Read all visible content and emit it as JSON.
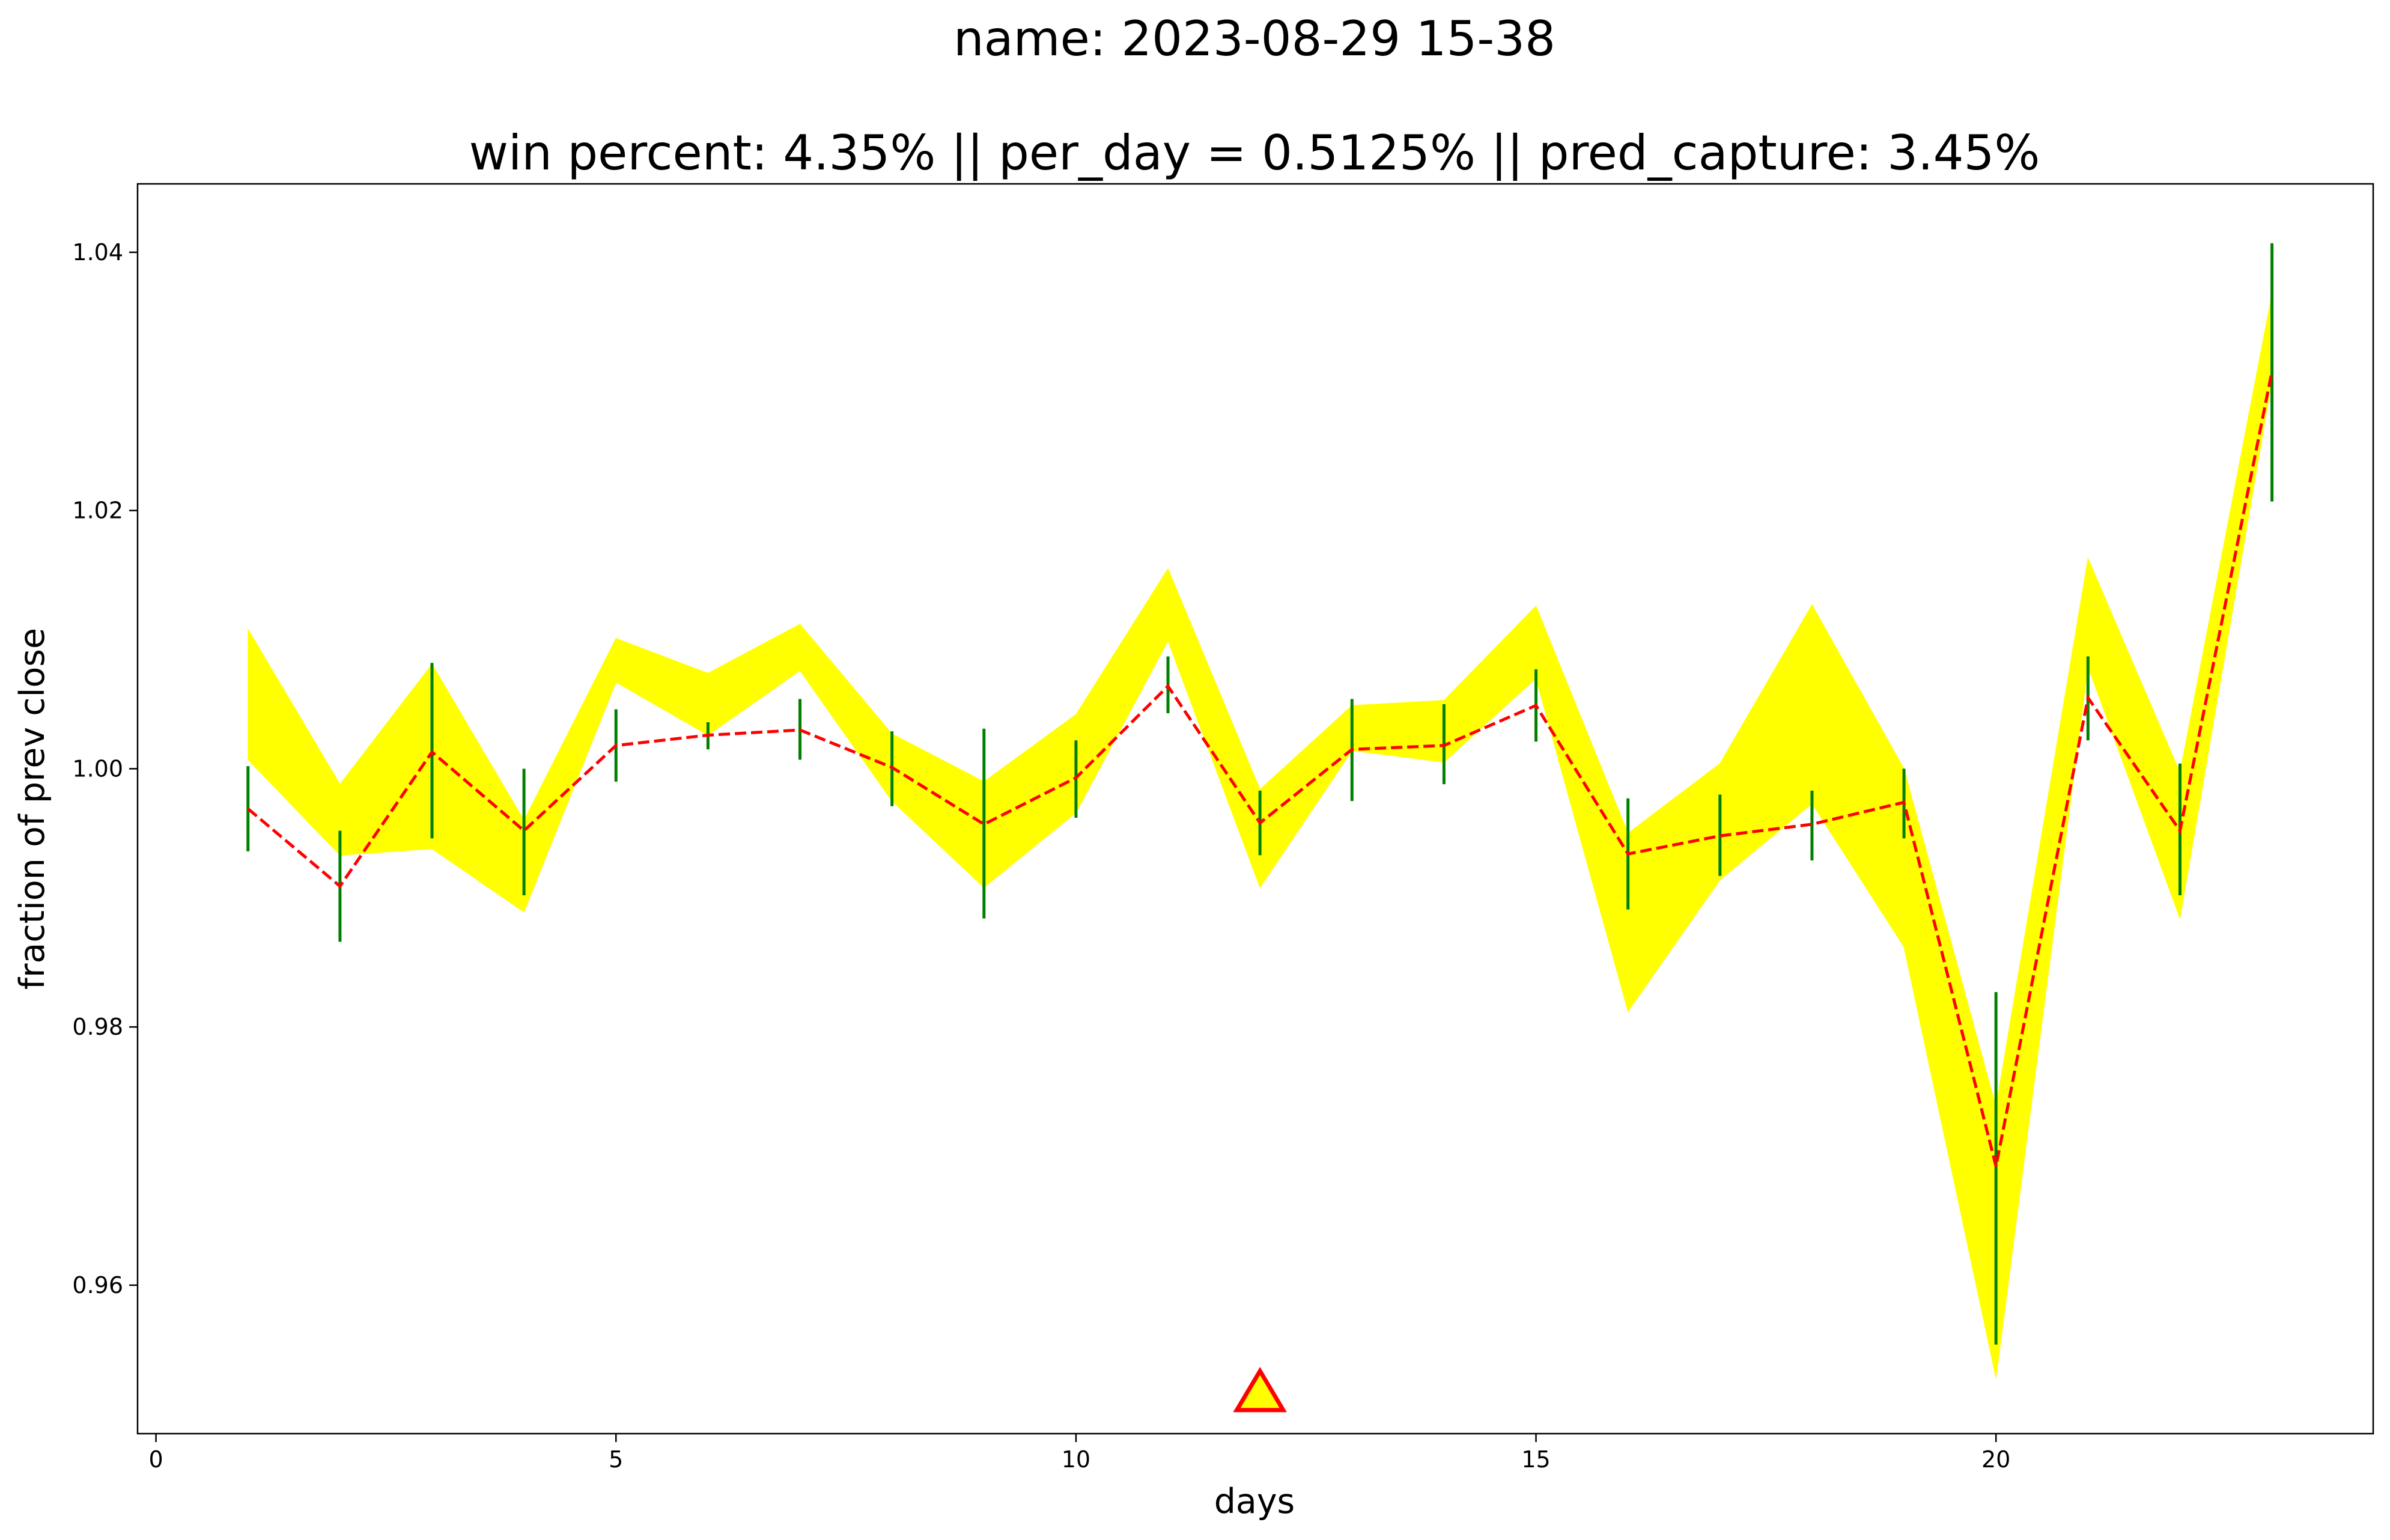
{
  "chart_data": {
    "type": "line",
    "title_lines": [
      "name: 2023-08-29 15-38",
      "win percent: 4.35%  || per_day = 0.5125% || pred_capture: 3.45%"
    ],
    "xlabel": "days",
    "ylabel": "fraction of prev close",
    "xlim": [
      -0.2,
      24.1
    ],
    "ylim": [
      0.9485,
      1.0453
    ],
    "xticks": [
      0,
      5,
      10,
      15,
      20
    ],
    "yticks": [
      0.96,
      0.98,
      1.0,
      1.02,
      1.04
    ],
    "ytick_labels": [
      "0.96",
      "0.98",
      "1.00",
      "1.02",
      "1.04"
    ],
    "grid": false,
    "x": [
      1,
      2,
      3,
      4,
      5,
      6,
      7,
      8,
      9,
      10,
      11,
      12,
      13,
      14,
      15,
      16,
      17,
      18,
      19,
      20,
      21,
      22,
      23
    ],
    "series": [
      {
        "kind": "band",
        "color": "#ffff00",
        "upper": [
          1.0108,
          0.9988,
          1.0081,
          0.996,
          1.0101,
          1.0074,
          1.0112,
          1.0027,
          0.999,
          1.0042,
          1.0155,
          0.9984,
          1.0049,
          1.0053,
          1.0126,
          0.995,
          1.0004,
          1.0127,
          1.0,
          0.9738,
          1.0163,
          0.9997,
          1.0368
        ],
        "lower": [
          1.0007,
          0.9933,
          0.9938,
          0.9889,
          1.0067,
          1.0026,
          1.0076,
          0.9975,
          0.9908,
          0.9966,
          1.0099,
          0.9908,
          1.0014,
          1.0005,
          1.007,
          0.9812,
          0.9914,
          0.9973,
          0.9862,
          0.9528,
          1.0079,
          0.9884,
          1.0301
        ]
      },
      {
        "kind": "errorbar",
        "color": "#008000",
        "center": [
          0.9969,
          0.9909,
          1.0013,
          0.9952,
          1.0018,
          1.0026,
          1.003,
          1.0001,
          0.9957,
          0.9993,
          1.0064,
          0.9958,
          1.0015,
          1.0018,
          1.0049,
          0.9934,
          0.9948,
          0.9957,
          0.9974,
          0.9692,
          1.0055,
          0.9952,
          1.0308
        ],
        "high": [
          1.0002,
          0.9952,
          1.0082,
          1.0,
          1.0046,
          1.0036,
          1.0054,
          1.0029,
          1.0031,
          1.0022,
          1.0087,
          0.9983,
          1.0054,
          1.005,
          1.0077,
          0.9977,
          0.998,
          0.9983,
          1.0,
          0.9827,
          1.0087,
          1.0004,
          1.0407
        ],
        "low": [
          0.9936,
          0.9866,
          0.9946,
          0.9902,
          0.999,
          1.0015,
          1.0007,
          0.9971,
          0.9884,
          0.9962,
          1.0043,
          0.9933,
          0.9975,
          0.9988,
          1.0021,
          0.9891,
          0.9917,
          0.9929,
          0.9946,
          0.9554,
          1.0022,
          0.9902,
          1.0207
        ]
      },
      {
        "kind": "line",
        "color": "#ff0000",
        "style": "dashed",
        "values": [
          0.9969,
          0.9909,
          1.0013,
          0.9952,
          1.0018,
          1.0026,
          1.003,
          1.0001,
          0.9957,
          0.9993,
          1.0064,
          0.9958,
          1.0015,
          1.0018,
          1.0049,
          0.9934,
          0.9948,
          0.9957,
          0.9974,
          0.9692,
          1.0055,
          0.9952,
          1.0308
        ]
      }
    ],
    "marker": {
      "shape": "triangle-up",
      "x": 12,
      "y": 0.9514,
      "fill": "#ffff00",
      "edge": "#ff0000"
    }
  }
}
